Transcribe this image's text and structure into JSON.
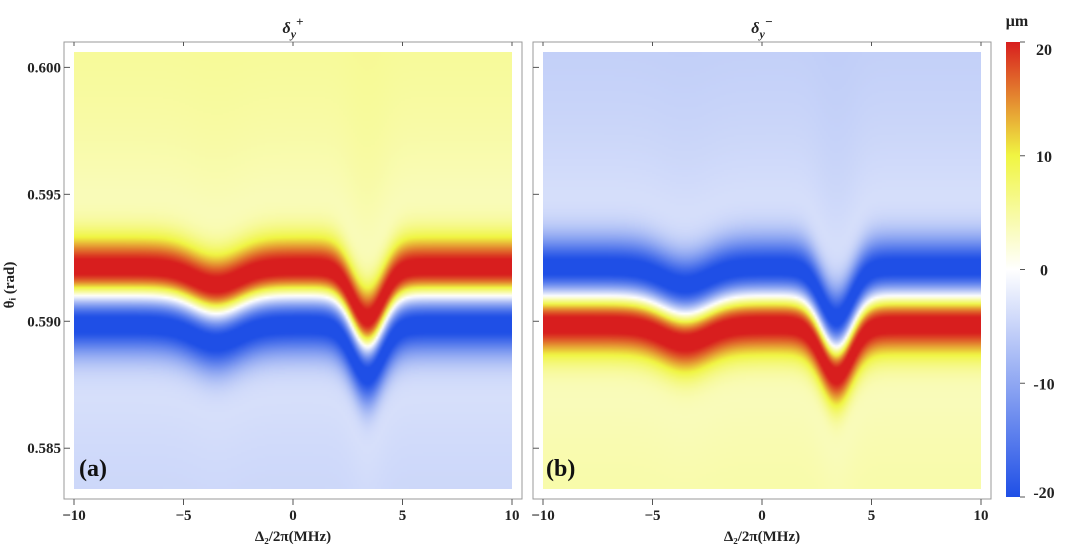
{
  "chart_data": {
    "type": "heatmap",
    "x_range": [
      -10,
      10
    ],
    "y_range": [
      0.583,
      0.601
    ],
    "x_ticks": [
      -10,
      -5,
      0,
      5,
      10
    ],
    "x_tick_labels": [
      "−10",
      "−5",
      "0",
      "5",
      "10"
    ],
    "y_ticks": [
      0.585,
      0.59,
      0.595,
      0.6
    ],
    "y_tick_labels": [
      "0.585",
      "0.590",
      "0.595",
      "0.600"
    ],
    "xlabel": "Δ₂/2π(MHz)",
    "ylabel": "θᵢ (rad)",
    "colorbar": {
      "unit": "μm",
      "range": [
        -20,
        20
      ],
      "ticks": [
        20,
        10,
        0,
        -10,
        -20
      ],
      "tick_labels": [
        "20",
        "10",
        "0",
        "-10",
        "-20"
      ],
      "colors": [
        "#1f4fe6",
        "#ffffff",
        "#f0f542",
        "#d81e1e"
      ]
    },
    "model": {
      "baseline_angle": 0.591,
      "dips": [
        {
          "center_detuning": -3.5,
          "depth": 0.0007,
          "width": 1.5
        },
        {
          "center_detuning": 3.4,
          "depth": 0.002,
          "width": 1.0
        }
      ],
      "peak_value": 20,
      "transition_width": 0.0011,
      "below_level": -5,
      "above_level": 6
    },
    "panels": [
      {
        "id": "a",
        "title_base": "δ",
        "title_sub": "y",
        "title_sup": "+",
        "letter": "(a)",
        "sign": 1
      },
      {
        "id": "b",
        "title_base": "δ",
        "title_sub": "y",
        "title_sup": "−",
        "letter": "(b)",
        "sign": -1
      }
    ]
  }
}
